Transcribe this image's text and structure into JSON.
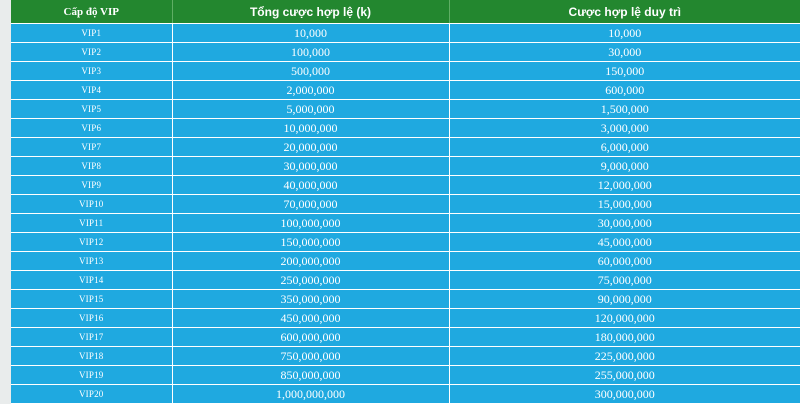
{
  "table": {
    "headers": {
      "level": "Cấp độ VIP",
      "total": "Tổng cược hợp lệ (k)",
      "maintain": "Cược hợp lệ duy trì"
    },
    "rows": [
      {
        "level": "VIP1",
        "total": "10,000",
        "maintain": "10,000"
      },
      {
        "level": "VIP2",
        "total": "100,000",
        "maintain": "30,000"
      },
      {
        "level": "VIP3",
        "total": "500,000",
        "maintain": "150,000"
      },
      {
        "level": "VIP4",
        "total": "2,000,000",
        "maintain": "600,000"
      },
      {
        "level": "VIP5",
        "total": "5,000,000",
        "maintain": "1,500,000"
      },
      {
        "level": "VIP6",
        "total": "10,000,000",
        "maintain": "3,000,000"
      },
      {
        "level": "VIP7",
        "total": "20,000,000",
        "maintain": "6,000,000"
      },
      {
        "level": "VIP8",
        "total": "30,000,000",
        "maintain": "9,000,000"
      },
      {
        "level": "VIP9",
        "total": "40,000,000",
        "maintain": "12,000,000"
      },
      {
        "level": "VIP10",
        "total": "70,000,000",
        "maintain": "15,000,000"
      },
      {
        "level": "VIP11",
        "total": "100,000,000",
        "maintain": "30,000,000"
      },
      {
        "level": "VIP12",
        "total": "150,000,000",
        "maintain": "45,000,000"
      },
      {
        "level": "VIP13",
        "total": "200,000,000",
        "maintain": "60,000,000"
      },
      {
        "level": "VIP14",
        "total": "250,000,000",
        "maintain": "75,000,000"
      },
      {
        "level": "VIP15",
        "total": "350,000,000",
        "maintain": "90,000,000"
      },
      {
        "level": "VIP16",
        "total": "450,000,000",
        "maintain": "120,000,000"
      },
      {
        "level": "VIP17",
        "total": "600,000,000",
        "maintain": "180,000,000"
      },
      {
        "level": "VIP18",
        "total": "750,000,000",
        "maintain": "225,000,000"
      },
      {
        "level": "VIP19",
        "total": "850,000,000",
        "maintain": "255,000,000"
      },
      {
        "level": "VIP20",
        "total": "1,000,000,000",
        "maintain": "300,000,000"
      }
    ]
  },
  "colors": {
    "header_bg": "#23872f",
    "cell_bg": "#1fa9e0",
    "text": "#ffffff",
    "page_bg": "#e9ecec"
  }
}
